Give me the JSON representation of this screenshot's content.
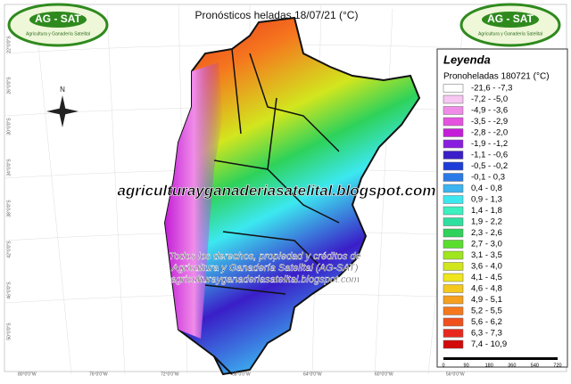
{
  "header": {
    "title": "Pronósticos heladas 18/07/21 (°C)"
  },
  "logos": [
    {
      "name": "AG - SAT",
      "tagline": "Agricultura y Ganadería Satelital"
    },
    {
      "name": "AG - SAT",
      "tagline": "Agricultura y Ganadería Satelital"
    }
  ],
  "legend": {
    "title": "Leyenda",
    "subtitle": "Pronoheladas 180721 (°C)",
    "entries": [
      {
        "label": "-21,6 - -7,3",
        "color": "#ffffff"
      },
      {
        "label": "-7,2 - -5,0",
        "color": "#f7c6f2"
      },
      {
        "label": "-4,9 - -3,6",
        "color": "#f08ce8"
      },
      {
        "label": "-3,5 - -2,9",
        "color": "#e652e0"
      },
      {
        "label": "-2,8 - -2,0",
        "color": "#c41ed8"
      },
      {
        "label": "-1,9 - -1,2",
        "color": "#8a1ee0"
      },
      {
        "label": "-1,1 - -0,6",
        "color": "#3a1ec8"
      },
      {
        "label": "-0,5 - -0,2",
        "color": "#1e3cd8"
      },
      {
        "label": "-0,1 - 0,3",
        "color": "#2a7ae8"
      },
      {
        "label": "0,4 - 0,8",
        "color": "#3cb4f0"
      },
      {
        "label": "0,9 - 1,3",
        "color": "#3ce8f0"
      },
      {
        "label": "1,4 - 1,8",
        "color": "#3cf0c0"
      },
      {
        "label": "1,9 - 2,2",
        "color": "#2ee0a0"
      },
      {
        "label": "2,3 - 2,6",
        "color": "#2ed25a"
      },
      {
        "label": "2,7 - 3,0",
        "color": "#5ade2e"
      },
      {
        "label": "3,1 - 3,5",
        "color": "#a0e61e"
      },
      {
        "label": "3,6 - 4,0",
        "color": "#d2e61e"
      },
      {
        "label": "4,1 - 4,5",
        "color": "#f0e61e"
      },
      {
        "label": "4,6 - 4,8",
        "color": "#f5c81e"
      },
      {
        "label": "4,9 - 5,1",
        "color": "#f5a01e"
      },
      {
        "label": "5,2 - 5,5",
        "color": "#f5781e"
      },
      {
        "label": "5,6 - 6,2",
        "color": "#f0501e"
      },
      {
        "label": "6,3 - 7,3",
        "color": "#e8281e"
      },
      {
        "label": "7,4 - 10,9",
        "color": "#d20a0a"
      }
    ]
  },
  "scale_bar": {
    "labels": [
      "0",
      "90",
      "180",
      "360",
      "540",
      "720"
    ]
  },
  "watermark": "agriculturayganaderiasatelital.blogspot.com",
  "credits": [
    "Todos los derechos, propiedad y créditos de",
    "Agricultura y Ganadería Satelital (AG-SAT)",
    "agriculturayganaderiasatelital.blogspot.com"
  ],
  "coordinates": {
    "bottom": [
      "80°0'0\"W",
      "76°0'0\"W",
      "72°0'0\"W",
      "68°0'0\"W",
      "64°0'0\"W",
      "60°0'0\"W",
      "56°0'0\"W"
    ],
    "left": [
      "22°0'0\"S",
      "26°0'0\"S",
      "30°0'0\"S",
      "34°0'0\"S",
      "38°0'0\"S",
      "42°0'0\"S",
      "46°0'0\"S",
      "50°0'0\"S"
    ]
  }
}
